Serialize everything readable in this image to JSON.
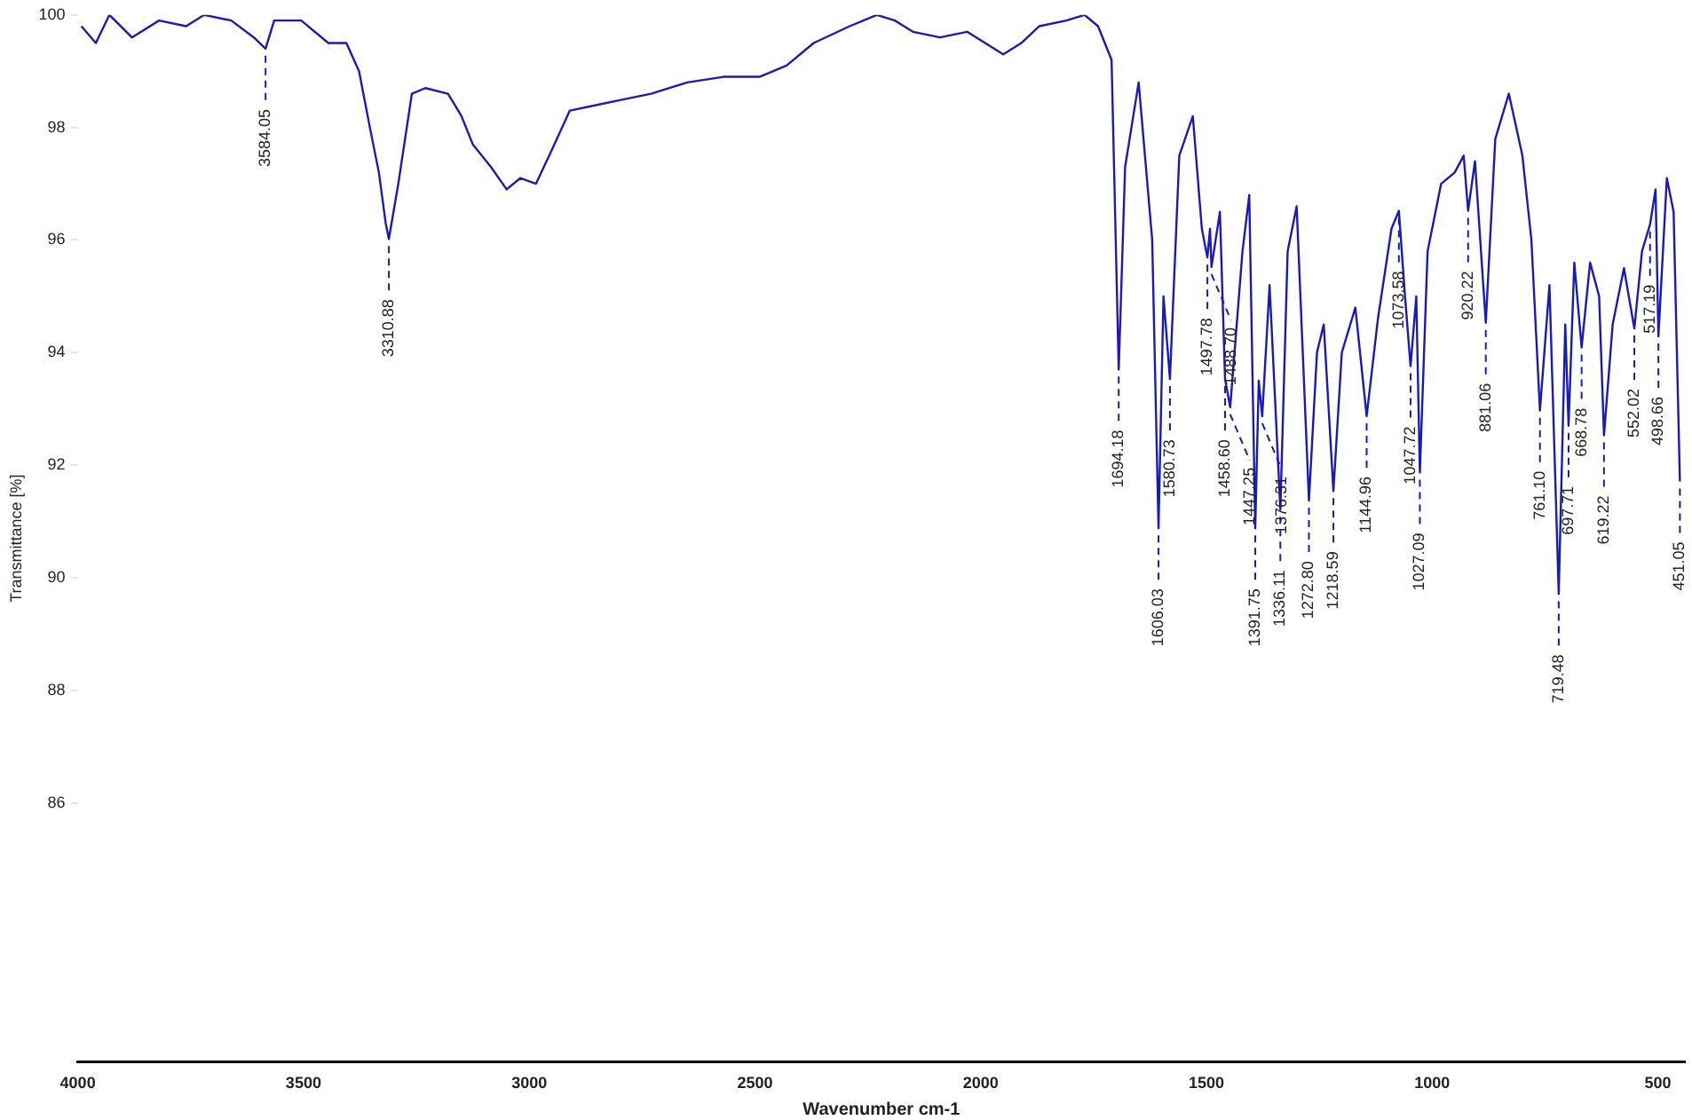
{
  "chart_data": {
    "type": "line",
    "xlabel": "Wavenumber cm-1",
    "ylabel": "Transmittance [%]",
    "xlim": [
      4000,
      440
    ],
    "xticks": [
      4000,
      3500,
      3000,
      2500,
      2000,
      1500,
      1000,
      500
    ],
    "ylim": [
      81.4,
      100
    ],
    "yticks": [
      100,
      98,
      96,
      94,
      92,
      90,
      88,
      86
    ],
    "grid": false,
    "legend": false,
    "marker": "none",
    "line_style": "solid",
    "series": [
      {
        "color": "#1a1ab8",
        "x": [
          3992,
          3960,
          3930,
          3880,
          3820,
          3760,
          3720,
          3660,
          3610,
          3584.05,
          3565,
          3505,
          3445,
          3405,
          3377,
          3353,
          3333,
          3318,
          3310.88,
          3290,
          3275,
          3260,
          3230,
          3180,
          3150,
          3125,
          3085,
          3050,
          3020,
          2985,
          2950,
          2910,
          2850,
          2790,
          2730,
          2650,
          2570,
          2490,
          2430,
          2370,
          2290,
          2230,
          2190,
          2150,
          2090,
          2030,
          1950,
          1910,
          1870,
          1810,
          1770,
          1740,
          1710,
          1694.18,
          1680,
          1650,
          1620,
          1606.03,
          1595,
          1580.73,
          1560,
          1530,
          1510,
          1497.78,
          1492,
          1488.7,
          1470,
          1458.6,
          1447.25,
          1420,
          1405,
          1391.75,
          1384,
          1376.31,
          1360,
          1336.11,
          1320,
          1300,
          1272.8,
          1255,
          1240,
          1218.59,
          1200,
          1170,
          1144.96,
          1120,
          1090,
          1073.58,
          1060,
          1047.72,
          1035,
          1027.09,
          1010,
          980,
          950,
          930,
          920.22,
          905,
          881.06,
          860,
          830,
          800,
          780,
          761.1,
          740,
          719.48,
          705,
          697.71,
          685,
          668.78,
          650,
          630,
          619.22,
          600,
          575,
          552.02,
          535,
          517.19,
          505,
          498.66,
          480,
          465,
          451.05
        ],
        "values": [
          99.8,
          99.5,
          100.0,
          99.6,
          99.9,
          99.8,
          100.0,
          99.9,
          99.6,
          99.4,
          99.9,
          99.9,
          99.5,
          99.5,
          99.0,
          98.0,
          97.2,
          96.3,
          96.02,
          97.0,
          97.8,
          98.6,
          98.7,
          98.6,
          98.2,
          97.7,
          97.3,
          96.9,
          97.1,
          97.0,
          97.6,
          98.3,
          98.4,
          98.5,
          98.6,
          98.8,
          98.9,
          98.9,
          99.1,
          99.5,
          99.8,
          100.0,
          99.9,
          99.7,
          99.6,
          99.7,
          99.3,
          99.5,
          99.8,
          99.9,
          100.0,
          99.8,
          99.2,
          93.7,
          97.3,
          98.8,
          96.0,
          90.88,
          95.0,
          93.53,
          97.5,
          98.2,
          96.2,
          95.69,
          96.2,
          95.52,
          96.5,
          93.53,
          93.03,
          95.8,
          96.8,
          90.88,
          93.5,
          92.87,
          95.2,
          91.21,
          95.8,
          96.6,
          91.37,
          94.0,
          94.5,
          91.54,
          94.0,
          94.8,
          92.87,
          94.6,
          96.2,
          96.52,
          95.0,
          93.76,
          95.0,
          91.87,
          95.8,
          97.0,
          97.2,
          97.5,
          96.52,
          97.4,
          94.53,
          97.8,
          98.6,
          97.5,
          96.0,
          92.97,
          95.2,
          89.71,
          94.5,
          92.7,
          95.6,
          94.09,
          95.6,
          95.0,
          92.53,
          94.5,
          95.5,
          94.43,
          95.8,
          96.28,
          96.9,
          94.29,
          97.1,
          96.5,
          91.71
        ]
      }
    ],
    "annotations": [
      {
        "text": "3584.05",
        "x": 3584.05,
        "y": 99.4
      },
      {
        "text": "3310.88",
        "x": 3310.88,
        "y": 96.02
      },
      {
        "text": "1694.18",
        "x": 1694.18,
        "y": 93.7
      },
      {
        "text": "1606.03",
        "x": 1606.03,
        "y": 90.88
      },
      {
        "text": "1580.73",
        "x": 1580.73,
        "y": 93.53
      },
      {
        "text": "1497.78",
        "x": 1497.78,
        "y": 95.69
      },
      {
        "text": "1488.70",
        "x": 1488.7,
        "y": 95.52
      },
      {
        "text": "1458.60",
        "x": 1458.6,
        "y": 93.53
      },
      {
        "text": "1447.25",
        "x": 1447.25,
        "y": 93.03
      },
      {
        "text": "1391.75",
        "x": 1391.75,
        "y": 90.88
      },
      {
        "text": "1376.31",
        "x": 1376.31,
        "y": 92.87
      },
      {
        "text": "1336.11",
        "x": 1336.11,
        "y": 91.21
      },
      {
        "text": "1272.80",
        "x": 1272.8,
        "y": 91.37
      },
      {
        "text": "1218.59",
        "x": 1218.59,
        "y": 91.54
      },
      {
        "text": "1144.96",
        "x": 1144.96,
        "y": 92.87
      },
      {
        "text": "1073.58",
        "x": 1073.58,
        "y": 96.52
      },
      {
        "text": "1047.72",
        "x": 1047.72,
        "y": 93.76
      },
      {
        "text": "1027.09",
        "x": 1027.09,
        "y": 91.87
      },
      {
        "text": "920.22",
        "x": 920.22,
        "y": 96.52
      },
      {
        "text": "881.06",
        "x": 881.06,
        "y": 94.53
      },
      {
        "text": "761.10",
        "x": 761.1,
        "y": 92.97
      },
      {
        "text": "719.48",
        "x": 719.48,
        "y": 89.71
      },
      {
        "text": "697.71",
        "x": 697.71,
        "y": 92.7
      },
      {
        "text": "668.78",
        "x": 668.78,
        "y": 94.09
      },
      {
        "text": "619.22",
        "x": 619.22,
        "y": 92.53
      },
      {
        "text": "552.02",
        "x": 552.02,
        "y": 94.43
      },
      {
        "text": "517.19",
        "x": 517.19,
        "y": 96.28
      },
      {
        "text": "498.66",
        "x": 498.66,
        "y": 94.29
      },
      {
        "text": "451.05",
        "x": 451.05,
        "y": 91.71
      }
    ]
  }
}
